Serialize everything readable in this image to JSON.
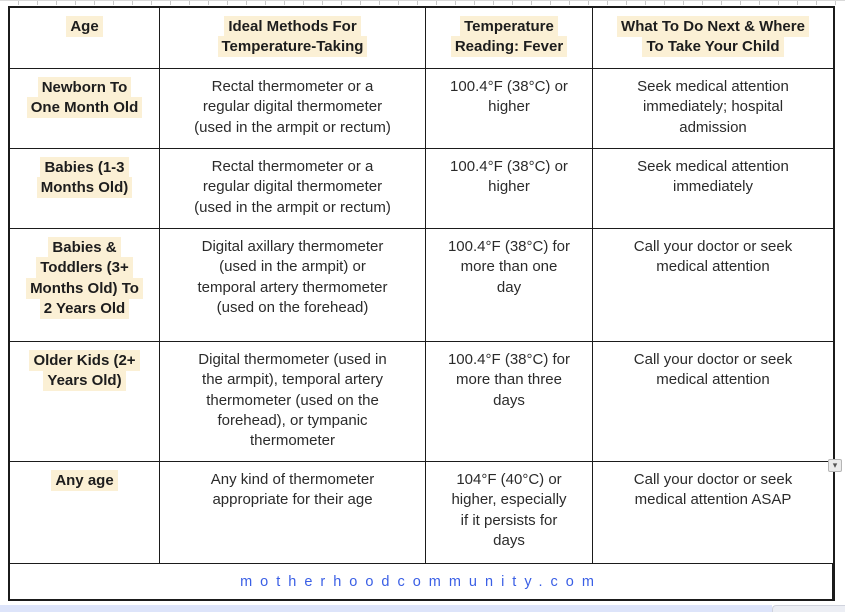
{
  "table": {
    "headers": [
      {
        "label": "Age"
      },
      {
        "label": "Ideal Methods For\nTemperature-Taking"
      },
      {
        "label": "Temperature\nReading: Fever"
      },
      {
        "label": "What To Do Next & Where\nTo Take Your Child"
      }
    ],
    "rows": [
      {
        "age": "Newborn To\nOne Month Old",
        "method": "Rectal thermometer or a\nregular digital thermometer\n(used in the armpit or rectum)",
        "reading": "100.4°F (38°C) or\nhigher",
        "action": "Seek medical attention\nimmediately; hospital\nadmission"
      },
      {
        "age": "Babies (1-3\nMonths Old)",
        "method": "Rectal thermometer or a\nregular digital thermometer\n(used in the armpit or rectum)",
        "reading": "100.4°F (38°C) or\nhigher",
        "action": "Seek medical attention\nimmediately"
      },
      {
        "age": "Babies &\nToddlers (3+\nMonths Old) To\n2 Years Old",
        "method": "Digital axillary thermometer\n(used in the armpit) or\ntemporal artery thermometer\n(used on the forehead)",
        "reading": "100.4°F (38°C) for\nmore than one\nday",
        "action": "Call your doctor or seek\nmedical attention"
      },
      {
        "age": "Older Kids (2+\nYears Old)",
        "method": "Digital thermometer (used in\nthe armpit), temporal artery\nthermometer (used on the\nforehead), or tympanic\nthermometer",
        "reading": "100.4°F (38°C) for\nmore than three\ndays",
        "action": "Call your doctor or seek\nmedical attention"
      },
      {
        "age": "Any age",
        "method": "Any kind of thermometer\nappropriate for their age",
        "reading": "104°F (40°C) or\nhigher, especially\nif it persists for\ndays",
        "action": "Call your doctor or seek\nmedical attention ASAP"
      }
    ],
    "footer_url": "motherhoodcommunity.com"
  },
  "icons": {
    "dropdown_arrow": "▾"
  },
  "colors": {
    "highlight": "#fbf0d5",
    "border": "#1b1b1b",
    "link_blue": "#3a5fe5",
    "selection_strip": "#dde4fa"
  }
}
